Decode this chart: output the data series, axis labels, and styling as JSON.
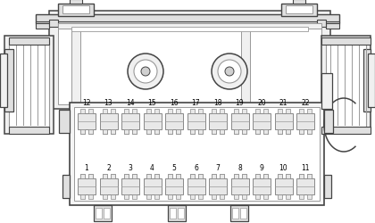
{
  "bg_color": "#ffffff",
  "line_color": "#444444",
  "mid_gray": "#999999",
  "light_gray": "#cccccc",
  "fill_light": "#f0f0f0",
  "fill_mid": "#e0e0e0",
  "fill_dark": "#d0d0d0",
  "fuse_fill": "#e8e8e8",
  "fuse_stroke": "#888888",
  "top_row_labels": [
    "12",
    "13",
    "14",
    "15",
    "16",
    "17",
    "18",
    "19",
    "20",
    "21",
    "22"
  ],
  "bot_row_labels": [
    "1",
    "2",
    "3",
    "4",
    "5",
    "6",
    "7",
    "8",
    "9",
    "10",
    "11"
  ]
}
